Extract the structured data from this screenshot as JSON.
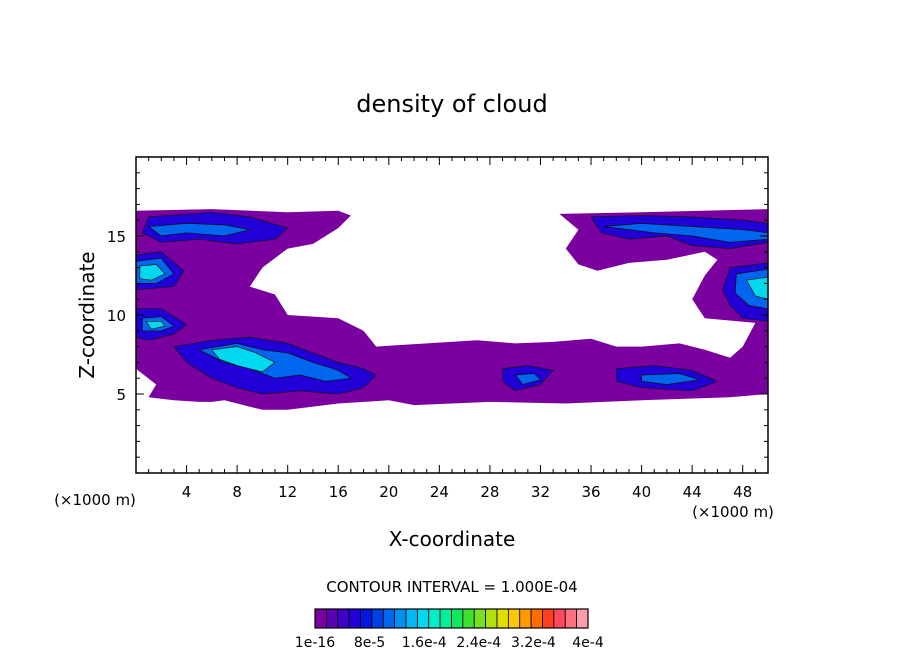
{
  "chart_data": {
    "type": "heatmap",
    "title": "density of cloud",
    "xlabel": "X-coordinate",
    "ylabel": "Z-coordinate",
    "x_unit_left": "(×1000 m)",
    "x_unit_right": "(×1000 m)",
    "xlim": [
      0,
      50
    ],
    "ylim": [
      0,
      20
    ],
    "x_ticks": [
      4,
      8,
      12,
      16,
      20,
      24,
      28,
      32,
      36,
      40,
      44,
      48
    ],
    "y_ticks": [
      5,
      10,
      15
    ],
    "contour_interval_label": "CONTOUR INTERVAL = 1.000E-04",
    "colorbar_labels": [
      "1e-16",
      "8e-5",
      "1.6e-4",
      "2.4e-4",
      "3.2e-4",
      "4e-4"
    ],
    "colorbar_colors": [
      "#7a00a0",
      "#5b00b5",
      "#3c00c8",
      "#2000d6",
      "#0018e0",
      "#0040e8",
      "#0066ee",
      "#0090f0",
      "#00b8f2",
      "#00d8ee",
      "#00eec8",
      "#00f09a",
      "#10e860",
      "#40e030",
      "#78e020",
      "#b0e010",
      "#e0e000",
      "#ffc800",
      "#ff9a00",
      "#ff6c00",
      "#ff4020",
      "#ff4860",
      "#ff7080",
      "#ff9cac"
    ],
    "regions": [
      {
        "level": "1e-16",
        "color": "#7a00a0",
        "points": [
          [
            0,
            16.6
          ],
          [
            6,
            16.7
          ],
          [
            12,
            16.5
          ],
          [
            16,
            16.6
          ],
          [
            17,
            16.3
          ],
          [
            16,
            15.5
          ],
          [
            14,
            14.5
          ],
          [
            12,
            14.2
          ],
          [
            10,
            13
          ],
          [
            9,
            11.8
          ],
          [
            11,
            11.3
          ],
          [
            12,
            10
          ],
          [
            16,
            9.8
          ],
          [
            18,
            9
          ],
          [
            19,
            8
          ],
          [
            23,
            8.2
          ],
          [
            27,
            8.4
          ],
          [
            30,
            8.2
          ],
          [
            33,
            8.3
          ],
          [
            36,
            8.5
          ],
          [
            38,
            8
          ],
          [
            40,
            8
          ],
          [
            43,
            8.2
          ],
          [
            45,
            7.8
          ],
          [
            47,
            7.3
          ],
          [
            48,
            8
          ],
          [
            49,
            9.5
          ],
          [
            45,
            9.8
          ],
          [
            44,
            11
          ],
          [
            45,
            12.5
          ],
          [
            46,
            13.5
          ],
          [
            45,
            14
          ],
          [
            42,
            13.5
          ],
          [
            39,
            13.3
          ],
          [
            36.5,
            12.8
          ],
          [
            35,
            13.2
          ],
          [
            34,
            14.2
          ],
          [
            35,
            15.4
          ],
          [
            33.5,
            16.4
          ],
          [
            40,
            16.5
          ],
          [
            50,
            16.7
          ],
          [
            50,
            5
          ],
          [
            47,
            4.8
          ],
          [
            40,
            4.6
          ],
          [
            34,
            4.4
          ],
          [
            28,
            4.5
          ],
          [
            22,
            4.3
          ],
          [
            20,
            4.6
          ],
          [
            16,
            4.4
          ],
          [
            12,
            4
          ],
          [
            10,
            4
          ],
          [
            7,
            4.6
          ],
          [
            6,
            4.5
          ],
          [
            5,
            4.5
          ],
          [
            3,
            4.6
          ],
          [
            1,
            4.8
          ],
          [
            1.6,
            5.6
          ],
          [
            0,
            6.6
          ]
        ]
      },
      {
        "level": "4e-5",
        "color": "#2000d6",
        "points": [
          [
            1,
            16.2
          ],
          [
            6,
            16.5
          ],
          [
            9,
            16.2
          ],
          [
            12,
            15.5
          ],
          [
            11,
            14.8
          ],
          [
            8,
            14.5
          ],
          [
            5,
            14.8
          ],
          [
            2,
            14.6
          ],
          [
            0.5,
            15.2
          ]
        ]
      },
      {
        "level": "4e-5",
        "color": "#2000d6",
        "points": [
          [
            0,
            13.8
          ],
          [
            2,
            14
          ],
          [
            3.8,
            12.8
          ],
          [
            3,
            11.8
          ],
          [
            0,
            11.6
          ]
        ]
      },
      {
        "level": "4e-5",
        "color": "#2000d6",
        "points": [
          [
            0,
            10.4
          ],
          [
            2,
            10.4
          ],
          [
            4,
            9.4
          ],
          [
            3,
            8.8
          ],
          [
            1,
            8.4
          ],
          [
            0,
            8.6
          ]
        ]
      },
      {
        "level": "4e-5",
        "color": "#2000d6",
        "points": [
          [
            3,
            8
          ],
          [
            6,
            8.4
          ],
          [
            9,
            8.6
          ],
          [
            12,
            8.2
          ],
          [
            14,
            7.6
          ],
          [
            16,
            7
          ],
          [
            18,
            6.6
          ],
          [
            19,
            6.2
          ],
          [
            18,
            5.4
          ],
          [
            16,
            5
          ],
          [
            13,
            5.2
          ],
          [
            10,
            5
          ],
          [
            8,
            5.4
          ],
          [
            6,
            6
          ],
          [
            4,
            7
          ]
        ]
      },
      {
        "level": "4e-5",
        "color": "#2000d6",
        "points": [
          [
            29,
            6.6
          ],
          [
            31,
            6.8
          ],
          [
            33,
            6.5
          ],
          [
            32,
            5.6
          ],
          [
            30,
            5.2
          ],
          [
            29,
            5.8
          ]
        ]
      },
      {
        "level": "4e-5",
        "color": "#2000d6",
        "points": [
          [
            38,
            6.6
          ],
          [
            41,
            6.8
          ],
          [
            44,
            6.5
          ],
          [
            46,
            5.8
          ],
          [
            44,
            5.2
          ],
          [
            40,
            5.4
          ],
          [
            38,
            5.8
          ]
        ]
      },
      {
        "level": "4e-5",
        "color": "#2000d6",
        "points": [
          [
            36,
            16.2
          ],
          [
            40,
            16.3
          ],
          [
            44,
            16.2
          ],
          [
            48,
            16
          ],
          [
            50,
            15.8
          ],
          [
            50,
            14.6
          ],
          [
            47,
            14.2
          ],
          [
            44,
            14.4
          ],
          [
            42,
            15
          ],
          [
            39,
            14.8
          ],
          [
            36.8,
            15.2
          ]
        ]
      },
      {
        "level": "4e-5",
        "color": "#2000d6",
        "points": [
          [
            47,
            13
          ],
          [
            50,
            13.3
          ],
          [
            50,
            9.6
          ],
          [
            48,
            9.8
          ],
          [
            47,
            10.6
          ],
          [
            46.4,
            11.6
          ]
        ]
      },
      {
        "level": "1.2e-4",
        "color": "#0066ee",
        "points": [
          [
            1,
            15.6
          ],
          [
            4,
            15.8
          ],
          [
            7,
            15.7
          ],
          [
            9,
            15.4
          ],
          [
            7,
            15
          ],
          [
            4,
            15.2
          ],
          [
            2,
            15
          ]
        ]
      },
      {
        "level": "1.2e-4",
        "color": "#0066ee",
        "points": [
          [
            0,
            13.4
          ],
          [
            2,
            13.6
          ],
          [
            3,
            12.6
          ],
          [
            1.6,
            12
          ],
          [
            0,
            12
          ]
        ]
      },
      {
        "level": "1.2e-4",
        "color": "#0066ee",
        "points": [
          [
            0.5,
            9.8
          ],
          [
            2,
            9.9
          ],
          [
            3,
            9.3
          ],
          [
            2,
            9
          ],
          [
            0.5,
            9
          ]
        ]
      },
      {
        "level": "1.2e-4",
        "color": "#0066ee",
        "points": [
          [
            5,
            7.8
          ],
          [
            8,
            8.2
          ],
          [
            10,
            7.8
          ],
          [
            12,
            7.6
          ],
          [
            14,
            7
          ],
          [
            16,
            6.5
          ],
          [
            17,
            6
          ],
          [
            15,
            5.8
          ],
          [
            13,
            6.2
          ],
          [
            11,
            6
          ],
          [
            9,
            6.6
          ],
          [
            7,
            7
          ]
        ]
      },
      {
        "level": "1.2e-4",
        "color": "#0066ee",
        "points": [
          [
            30,
            6.2
          ],
          [
            31.5,
            6.3
          ],
          [
            32,
            5.9
          ],
          [
            30.6,
            5.6
          ]
        ]
      },
      {
        "level": "1.2e-4",
        "color": "#0066ee",
        "points": [
          [
            40,
            6.2
          ],
          [
            43,
            6.3
          ],
          [
            44.6,
            5.9
          ],
          [
            42,
            5.6
          ],
          [
            40,
            5.8
          ]
        ]
      },
      {
        "level": "1.2e-4",
        "color": "#0066ee",
        "points": [
          [
            37,
            15.6
          ],
          [
            40,
            15.8
          ],
          [
            44,
            15.6
          ],
          [
            48,
            15.4
          ],
          [
            50,
            15.2
          ],
          [
            50,
            14.8
          ],
          [
            47,
            14.6
          ],
          [
            44,
            15
          ],
          [
            41,
            15.2
          ]
        ]
      },
      {
        "level": "1.2e-4",
        "color": "#0066ee",
        "points": [
          [
            47.5,
            12.6
          ],
          [
            50,
            12.9
          ],
          [
            50,
            10.4
          ],
          [
            48.5,
            10.6
          ],
          [
            47.4,
            11.4
          ]
        ]
      },
      {
        "level": "2e-4",
        "color": "#00d8ee",
        "points": [
          [
            0.3,
            13.1
          ],
          [
            1.6,
            13.2
          ],
          [
            2.3,
            12.6
          ],
          [
            1.2,
            12.2
          ],
          [
            0.3,
            12.3
          ]
        ]
      },
      {
        "level": "2e-4",
        "color": "#00d8ee",
        "points": [
          [
            0.8,
            9.6
          ],
          [
            2,
            9.6
          ],
          [
            2.3,
            9.3
          ],
          [
            1.2,
            9.1
          ]
        ]
      },
      {
        "level": "2e-4",
        "color": "#00d8ee",
        "points": [
          [
            6,
            7.8
          ],
          [
            8,
            8
          ],
          [
            9.5,
            7.6
          ],
          [
            11,
            7
          ],
          [
            10,
            6.4
          ],
          [
            8,
            6.8
          ],
          [
            6.6,
            7.2
          ]
        ]
      },
      {
        "level": "2e-4",
        "color": "#00d8ee",
        "points": [
          [
            48.3,
            12.2
          ],
          [
            50,
            12.4
          ],
          [
            50,
            11
          ],
          [
            49,
            11.2
          ]
        ]
      }
    ]
  }
}
